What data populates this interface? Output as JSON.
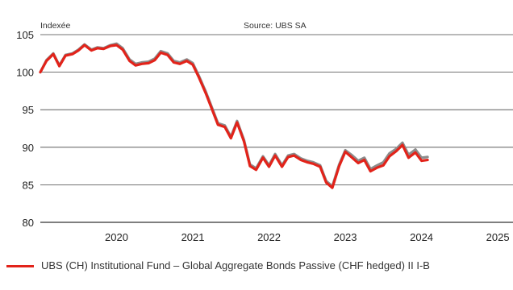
{
  "chart_data": {
    "type": "line",
    "subtitle_left": "Indexée",
    "source": "Source: UBS SA",
    "xlabel": "",
    "ylabel": "",
    "ylim": [
      80,
      105
    ],
    "xlim": [
      2019.5,
      2025.7
    ],
    "y_ticks": [
      "80",
      "85",
      "90",
      "95",
      "100",
      "105"
    ],
    "x_ticks": [
      "2020",
      "2021",
      "2022",
      "2023",
      "2024",
      "2025"
    ],
    "grid": "horizontal",
    "legend_position": "bottom",
    "colors": {
      "primary": "#e2231a",
      "benchmark": "#8c8c8c"
    },
    "series": [
      {
        "name": "UBS (CH) Institutional Fund – Global Aggregate Bonds Passive (CHF hedged) II I-B",
        "color": "#e2231a",
        "x": [
          2019.5,
          2019.58,
          2019.67,
          2019.75,
          2019.83,
          2019.92,
          2020.0,
          2020.08,
          2020.17,
          2020.25,
          2020.33,
          2020.42,
          2020.5,
          2020.58,
          2020.67,
          2020.75,
          2020.83,
          2020.92,
          2021.0,
          2021.08,
          2021.17,
          2021.25,
          2021.33,
          2021.42,
          2021.5,
          2021.58,
          2021.67,
          2021.75,
          2021.83,
          2021.92,
          2022.0,
          2022.08,
          2022.17,
          2022.25,
          2022.33,
          2022.42,
          2022.5,
          2022.58,
          2022.67,
          2022.75,
          2022.83,
          2022.92,
          2023.0,
          2023.08,
          2023.17,
          2023.25,
          2023.33,
          2023.42,
          2023.5,
          2023.58,
          2023.67,
          2023.75,
          2023.83,
          2023.92,
          2024.0,
          2024.08,
          2024.17,
          2024.25,
          2024.33,
          2024.42,
          2024.5,
          2024.58
        ],
        "y": [
          100.0,
          101.5,
          102.4,
          100.8,
          102.2,
          102.4,
          102.9,
          103.6,
          102.9,
          103.2,
          103.1,
          103.5,
          103.6,
          103.0,
          101.5,
          100.9,
          101.1,
          101.2,
          101.6,
          102.6,
          102.3,
          101.3,
          101.1,
          101.5,
          101.0,
          99.3,
          97.2,
          95.1,
          93.0,
          92.7,
          91.2,
          93.3,
          90.8,
          87.5,
          87.0,
          88.6,
          87.4,
          88.9,
          87.4,
          88.7,
          88.9,
          88.3,
          88.0,
          87.8,
          87.4,
          85.3,
          84.6,
          87.5,
          89.4,
          88.7,
          87.9,
          88.3,
          86.8,
          87.3,
          87.6,
          88.8,
          89.5,
          90.3,
          88.6,
          89.3,
          88.2,
          88.3
        ]
      },
      {
        "color": "#8c8c8c",
        "x": [
          2019.5,
          2019.58,
          2019.67,
          2019.75,
          2019.83,
          2019.92,
          2020.0,
          2020.08,
          2020.17,
          2020.25,
          2020.33,
          2020.42,
          2020.5,
          2020.58,
          2020.67,
          2020.75,
          2020.83,
          2020.92,
          2021.0,
          2021.08,
          2021.17,
          2021.25,
          2021.33,
          2021.42,
          2021.5,
          2021.58,
          2021.67,
          2021.75,
          2021.83,
          2021.92,
          2022.0,
          2022.08,
          2022.17,
          2022.25,
          2022.33,
          2022.42,
          2022.5,
          2022.58,
          2022.67,
          2022.75,
          2022.83,
          2022.92,
          2023.0,
          2023.08,
          2023.17,
          2023.25,
          2023.33,
          2023.42,
          2023.5,
          2023.58,
          2023.67,
          2023.75,
          2023.83,
          2023.92,
          2024.0,
          2024.08,
          2024.17,
          2024.25,
          2024.33,
          2024.42,
          2024.5,
          2024.58
        ],
        "y": [
          100.0,
          101.6,
          102.5,
          100.9,
          102.3,
          102.5,
          103.0,
          103.7,
          103.0,
          103.3,
          103.2,
          103.6,
          103.8,
          103.2,
          101.7,
          101.1,
          101.3,
          101.4,
          101.8,
          102.8,
          102.5,
          101.5,
          101.3,
          101.7,
          101.2,
          99.5,
          97.4,
          95.3,
          93.2,
          92.9,
          91.4,
          93.5,
          91.0,
          87.7,
          87.2,
          88.8,
          87.6,
          89.1,
          87.6,
          88.9,
          89.1,
          88.5,
          88.2,
          88.0,
          87.6,
          85.5,
          84.8,
          87.7,
          89.6,
          89.0,
          88.2,
          88.6,
          87.1,
          87.6,
          88.0,
          89.2,
          89.8,
          90.6,
          89.0,
          89.7,
          88.6,
          88.7
        ]
      }
    ]
  }
}
